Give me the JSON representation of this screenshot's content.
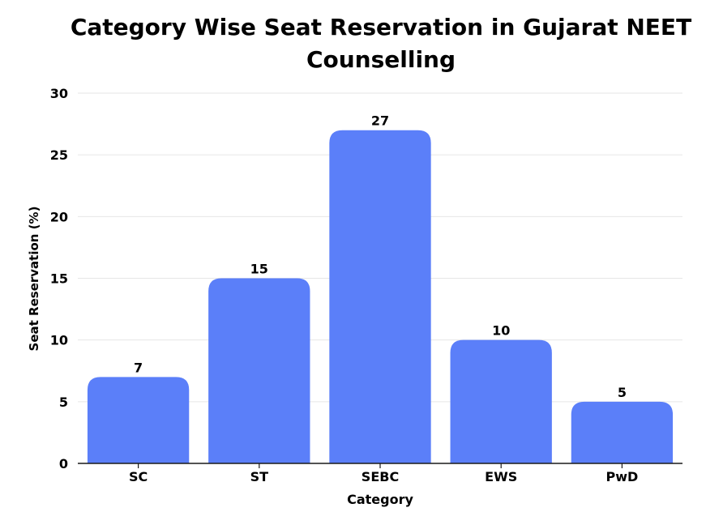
{
  "chart_data": {
    "type": "bar",
    "title": "Category Wise Seat Reservation in Gujarat NEET Counselling",
    "xlabel": "Category",
    "ylabel": "Seat Reservation (%)",
    "categories": [
      "SC",
      "ST",
      "SEBC",
      "EWS",
      "PwD"
    ],
    "values": [
      7,
      15,
      27,
      10,
      5
    ],
    "data_labels": [
      "7",
      "15",
      "27",
      "10",
      "5"
    ],
    "ylim": [
      0,
      30
    ],
    "yticks": [
      0,
      5,
      10,
      15,
      20,
      25,
      30
    ],
    "ytick_labels": [
      "0",
      "5",
      "10",
      "15",
      "20",
      "25",
      "30"
    ],
    "grid": true,
    "bar_color": "#5b7ff9",
    "grid_color": "#e6e6e6",
    "axis_color": "#1a1a1a"
  }
}
